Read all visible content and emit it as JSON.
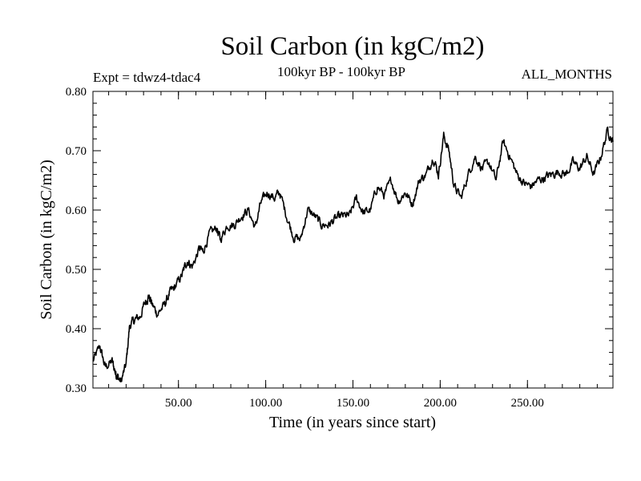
{
  "chart_data": {
    "type": "line",
    "title": "Soil Carbon (in kgC/m2)",
    "experiment": "Expt = tdwz4-tdac4",
    "period": "100kyr BP - 100kyr BP",
    "months": "ALL_MONTHS",
    "xlabel": "Time (in years since start)",
    "ylabel": "Soil Carbon (in kgC/m2)",
    "xlim": [
      1,
      299
    ],
    "ylim": [
      0.3,
      0.8
    ],
    "x_ticks": [
      50,
      100,
      150,
      200,
      250
    ],
    "x_tick_labels": [
      "50.00",
      "100.00",
      "150.00",
      "200.00",
      "250.00"
    ],
    "y_ticks": [
      0.3,
      0.4,
      0.5,
      0.6,
      0.7,
      0.8
    ],
    "y_tick_labels": [
      "0.30",
      "0.40",
      "0.50",
      "0.60",
      "0.70",
      "0.80"
    ],
    "series": [
      {
        "name": "Soil Carbon",
        "x": [
          1,
          5,
          8,
          12,
          14,
          15,
          17,
          20,
          22,
          25,
          28,
          31,
          33,
          35,
          38,
          42,
          45,
          48,
          52,
          55,
          58,
          62,
          64,
          68,
          72,
          74,
          78,
          82,
          86,
          90,
          94,
          97,
          101,
          105,
          108,
          112,
          116,
          120,
          124,
          128,
          132,
          136,
          140,
          144,
          148,
          152,
          156,
          160,
          164,
          168,
          172,
          176,
          180,
          184,
          188,
          192,
          196,
          199,
          202,
          205,
          208,
          212,
          216,
          220,
          224,
          228,
          232,
          236,
          240,
          244,
          248,
          252,
          256,
          260,
          264,
          268,
          272,
          276,
          280,
          284,
          288,
          292,
          296,
          299
        ],
        "y": [
          0.345,
          0.37,
          0.335,
          0.345,
          0.325,
          0.32,
          0.31,
          0.34,
          0.405,
          0.415,
          0.42,
          0.445,
          0.455,
          0.44,
          0.425,
          0.44,
          0.46,
          0.47,
          0.49,
          0.515,
          0.505,
          0.535,
          0.53,
          0.56,
          0.57,
          0.55,
          0.575,
          0.575,
          0.59,
          0.6,
          0.57,
          0.61,
          0.63,
          0.62,
          0.63,
          0.59,
          0.555,
          0.55,
          0.6,
          0.59,
          0.575,
          0.575,
          0.585,
          0.59,
          0.59,
          0.62,
          0.595,
          0.6,
          0.64,
          0.625,
          0.65,
          0.615,
          0.63,
          0.61,
          0.65,
          0.66,
          0.69,
          0.66,
          0.725,
          0.7,
          0.64,
          0.62,
          0.66,
          0.69,
          0.67,
          0.68,
          0.65,
          0.715,
          0.69,
          0.66,
          0.645,
          0.64,
          0.65,
          0.655,
          0.66,
          0.665,
          0.66,
          0.68,
          0.67,
          0.69,
          0.66,
          0.69,
          0.735,
          0.715
        ]
      }
    ]
  }
}
